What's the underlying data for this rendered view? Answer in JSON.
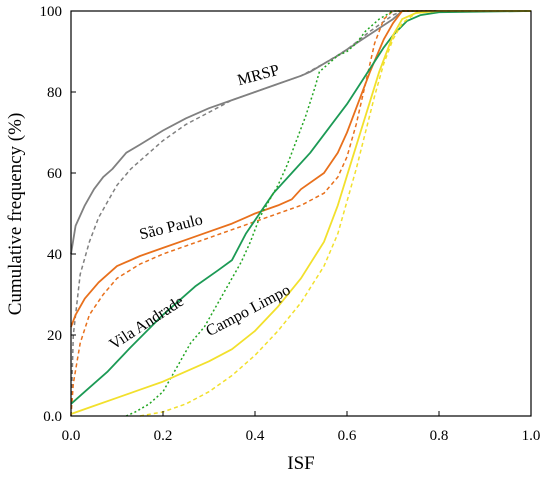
{
  "chart_data": {
    "type": "line",
    "xlabel": "ISF",
    "ylabel": "Cumulative frequency (%)",
    "xlim": [
      0,
      1
    ],
    "ylim": [
      0,
      100
    ],
    "xticks": [
      "0.0",
      "0.2",
      "0.4",
      "0.6",
      "0.8",
      "1.0"
    ],
    "yticks": [
      "0.0",
      "20",
      "40",
      "60",
      "80",
      "100"
    ],
    "grid": false,
    "legend": "none",
    "annotations": [
      {
        "text": "MRSP",
        "x": 0.41,
        "y": 83,
        "angle": -15,
        "color": "#000000"
      },
      {
        "text": "São Paulo",
        "x": 0.22,
        "y": 45.5,
        "angle": -14,
        "color": "#000000"
      },
      {
        "text": "Vila Andrade",
        "x": 0.17,
        "y": 22,
        "angle": -33,
        "color": "#000000"
      },
      {
        "text": "Campo Limpo",
        "x": 0.39,
        "y": 25,
        "angle": -28,
        "color": "#000000"
      }
    ],
    "series": [
      {
        "color": "#808080",
        "dash": "solid",
        "points": [
          [
            0,
            40
          ],
          [
            0.01,
            47
          ],
          [
            0.03,
            52
          ],
          [
            0.05,
            56
          ],
          [
            0.07,
            59
          ],
          [
            0.09,
            61
          ],
          [
            0.12,
            65
          ],
          [
            0.15,
            67
          ],
          [
            0.2,
            70.5
          ],
          [
            0.25,
            73.5
          ],
          [
            0.3,
            76
          ],
          [
            0.35,
            78
          ],
          [
            0.4,
            80
          ],
          [
            0.45,
            82
          ],
          [
            0.5,
            84
          ],
          [
            0.52,
            85
          ],
          [
            0.55,
            87
          ],
          [
            0.58,
            89
          ],
          [
            0.62,
            92
          ],
          [
            0.66,
            95
          ],
          [
            0.7,
            98
          ],
          [
            0.72,
            100
          ],
          [
            1.0,
            100
          ]
        ]
      },
      {
        "color": "#808080",
        "dash": "dash",
        "points": [
          [
            0,
            0
          ],
          [
            0.005,
            20
          ],
          [
            0.02,
            35
          ],
          [
            0.04,
            43
          ],
          [
            0.06,
            49
          ],
          [
            0.08,
            53
          ],
          [
            0.1,
            57
          ],
          [
            0.13,
            61
          ],
          [
            0.16,
            64
          ],
          [
            0.2,
            68
          ],
          [
            0.25,
            72
          ],
          [
            0.3,
            75
          ],
          [
            0.35,
            78
          ],
          [
            0.4,
            80
          ],
          [
            0.45,
            82
          ],
          [
            0.5,
            84
          ],
          [
            0.55,
            87
          ],
          [
            0.6,
            90.5
          ],
          [
            0.65,
            95
          ],
          [
            0.7,
            99
          ],
          [
            0.72,
            100
          ],
          [
            1.0,
            100
          ]
        ]
      },
      {
        "color": "#E8701C",
        "dash": "solid",
        "points": [
          [
            0,
            22
          ],
          [
            0.01,
            25
          ],
          [
            0.03,
            29
          ],
          [
            0.06,
            33
          ],
          [
            0.1,
            37
          ],
          [
            0.15,
            39.5
          ],
          [
            0.2,
            41.5
          ],
          [
            0.25,
            43.5
          ],
          [
            0.3,
            45.5
          ],
          [
            0.35,
            47.5
          ],
          [
            0.38,
            49
          ],
          [
            0.4,
            50
          ],
          [
            0.45,
            52
          ],
          [
            0.48,
            53.5
          ],
          [
            0.5,
            56
          ],
          [
            0.55,
            60
          ],
          [
            0.58,
            65
          ],
          [
            0.6,
            70
          ],
          [
            0.62,
            76
          ],
          [
            0.65,
            85
          ],
          [
            0.68,
            93
          ],
          [
            0.7,
            97
          ],
          [
            0.72,
            100
          ],
          [
            1.0,
            100
          ]
        ]
      },
      {
        "color": "#E8701C",
        "dash": "dash",
        "points": [
          [
            0,
            0
          ],
          [
            0.005,
            8
          ],
          [
            0.02,
            18
          ],
          [
            0.04,
            25
          ],
          [
            0.07,
            30
          ],
          [
            0.1,
            34
          ],
          [
            0.15,
            37.5
          ],
          [
            0.2,
            40
          ],
          [
            0.25,
            42
          ],
          [
            0.3,
            44
          ],
          [
            0.35,
            46
          ],
          [
            0.4,
            48
          ],
          [
            0.45,
            50
          ],
          [
            0.5,
            52
          ],
          [
            0.55,
            55
          ],
          [
            0.58,
            59
          ],
          [
            0.6,
            64
          ],
          [
            0.62,
            72
          ],
          [
            0.64,
            82
          ],
          [
            0.66,
            92
          ],
          [
            0.68,
            98
          ],
          [
            0.7,
            100
          ],
          [
            1.0,
            100
          ]
        ]
      },
      {
        "color": "#1C9A55",
        "dash": "solid",
        "points": [
          [
            0,
            3
          ],
          [
            0.03,
            6
          ],
          [
            0.08,
            11
          ],
          [
            0.13,
            17
          ],
          [
            0.2,
            25
          ],
          [
            0.27,
            32
          ],
          [
            0.32,
            36
          ],
          [
            0.35,
            38.5
          ],
          [
            0.38,
            45
          ],
          [
            0.41,
            50
          ],
          [
            0.44,
            55
          ],
          [
            0.48,
            60
          ],
          [
            0.52,
            65
          ],
          [
            0.56,
            71
          ],
          [
            0.6,
            77
          ],
          [
            0.64,
            84
          ],
          [
            0.68,
            91
          ],
          [
            0.7,
            94
          ],
          [
            0.73,
            97.5
          ],
          [
            0.76,
            99
          ],
          [
            0.8,
            99.7
          ],
          [
            1.0,
            100
          ]
        ]
      },
      {
        "color": "#21A521",
        "dash": "dot",
        "points": [
          [
            0.12,
            0
          ],
          [
            0.14,
            1
          ],
          [
            0.17,
            3
          ],
          [
            0.2,
            6
          ],
          [
            0.23,
            12
          ],
          [
            0.26,
            18
          ],
          [
            0.29,
            22
          ],
          [
            0.31,
            26
          ],
          [
            0.33,
            30
          ],
          [
            0.35,
            34
          ],
          [
            0.37,
            38
          ],
          [
            0.39,
            43
          ],
          [
            0.41,
            49
          ],
          [
            0.43,
            53
          ],
          [
            0.45,
            57
          ],
          [
            0.47,
            62
          ],
          [
            0.49,
            68
          ],
          [
            0.51,
            74
          ],
          [
            0.53,
            81
          ],
          [
            0.54,
            85
          ],
          [
            0.56,
            87
          ],
          [
            0.58,
            89
          ],
          [
            0.6,
            90
          ],
          [
            0.62,
            92
          ],
          [
            0.64,
            95
          ],
          [
            0.67,
            98
          ],
          [
            0.7,
            100
          ],
          [
            1.0,
            100
          ]
        ]
      },
      {
        "color": "#F2E02C",
        "dash": "solid",
        "points": [
          [
            0,
            0.5
          ],
          [
            0.05,
            2.5
          ],
          [
            0.1,
            4.5
          ],
          [
            0.15,
            6.5
          ],
          [
            0.2,
            8.5
          ],
          [
            0.25,
            11
          ],
          [
            0.3,
            13.5
          ],
          [
            0.35,
            16.5
          ],
          [
            0.4,
            21
          ],
          [
            0.45,
            27
          ],
          [
            0.5,
            34
          ],
          [
            0.55,
            43
          ],
          [
            0.58,
            52
          ],
          [
            0.61,
            63
          ],
          [
            0.64,
            74
          ],
          [
            0.67,
            85
          ],
          [
            0.7,
            94
          ],
          [
            0.72,
            98
          ],
          [
            0.75,
            99.5
          ],
          [
            0.8,
            100
          ],
          [
            1.0,
            100
          ]
        ]
      },
      {
        "color": "#F2E02C",
        "dash": "dash",
        "points": [
          [
            0.15,
            0
          ],
          [
            0.2,
            1
          ],
          [
            0.25,
            3
          ],
          [
            0.3,
            6
          ],
          [
            0.35,
            10
          ],
          [
            0.4,
            15
          ],
          [
            0.45,
            21
          ],
          [
            0.5,
            28
          ],
          [
            0.55,
            37
          ],
          [
            0.58,
            45
          ],
          [
            0.6,
            53
          ],
          [
            0.62,
            61
          ],
          [
            0.64,
            70
          ],
          [
            0.66,
            79
          ],
          [
            0.68,
            87
          ],
          [
            0.7,
            93
          ],
          [
            0.72,
            97
          ],
          [
            0.75,
            99.5
          ],
          [
            0.8,
            100
          ],
          [
            1.0,
            100
          ]
        ]
      }
    ]
  }
}
